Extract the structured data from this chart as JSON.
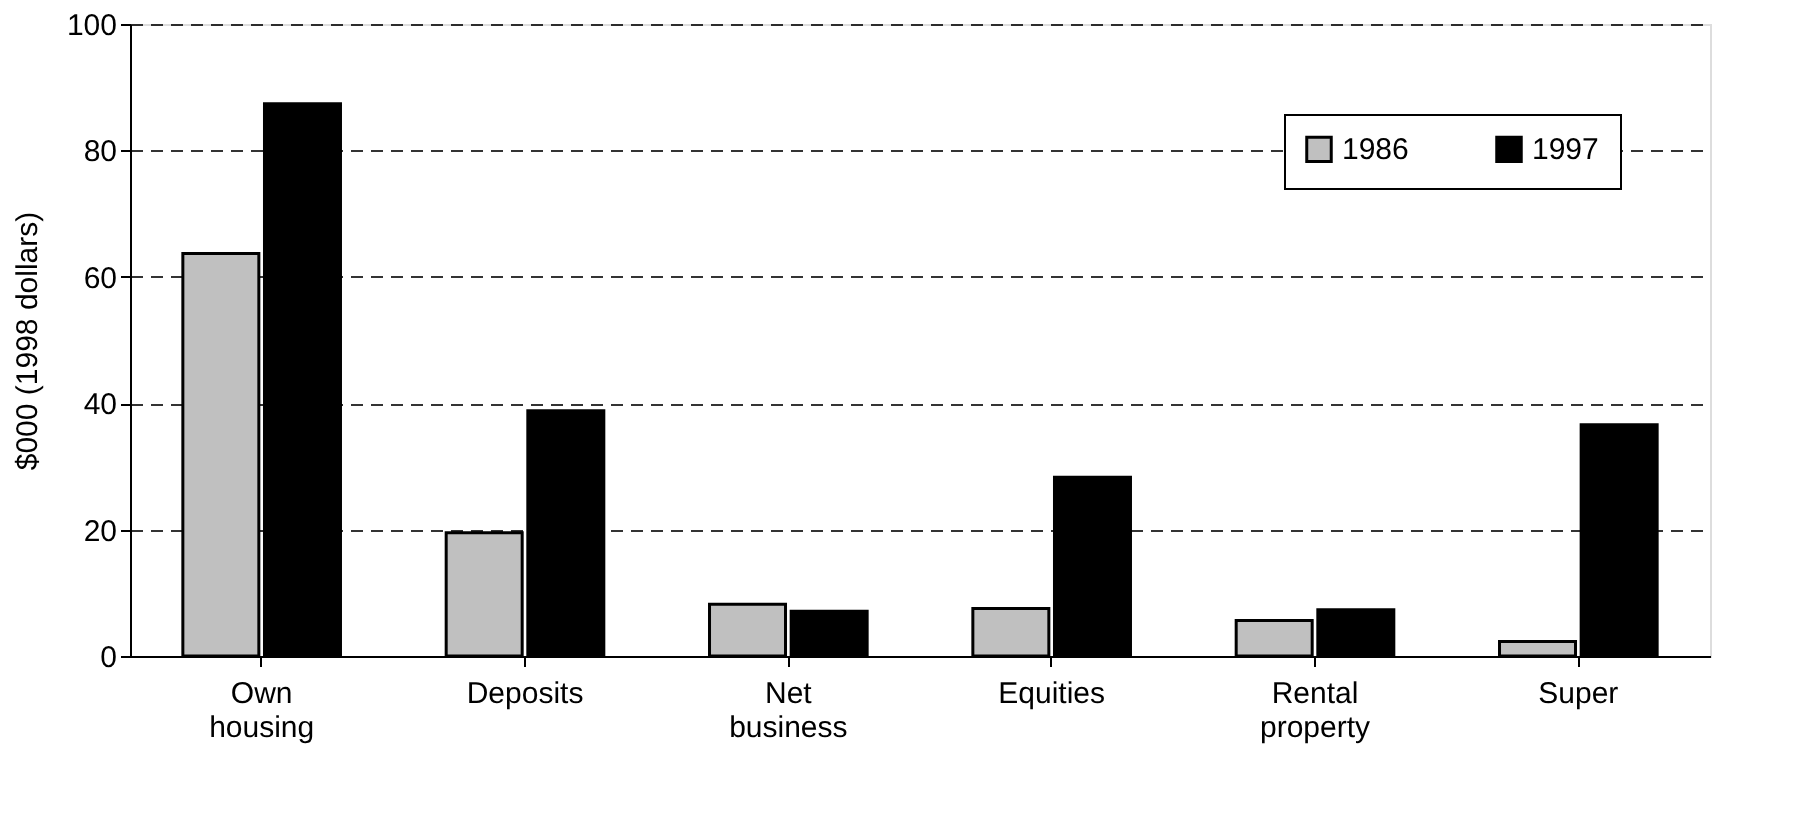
{
  "chart_data": {
    "type": "bar",
    "ylabel": "$000 (1998 dollars)",
    "categories": [
      "Own housing",
      "Deposits",
      "Net business",
      "Equities",
      "Rental property",
      "Super"
    ],
    "series": [
      {
        "name": "1986",
        "color": "#c0c0c0",
        "values": [
          63.7,
          19.5,
          8.2,
          7.5,
          5.6,
          2.3
        ]
      },
      {
        "name": "1997",
        "color": "#000000",
        "values": [
          87.4,
          38.8,
          7.1,
          28.3,
          7.3,
          36.6
        ]
      }
    ],
    "ylim": [
      0,
      100
    ],
    "yticks": [
      0,
      20,
      40,
      60,
      80,
      100
    ],
    "grid": "y",
    "legend": "top right"
  }
}
